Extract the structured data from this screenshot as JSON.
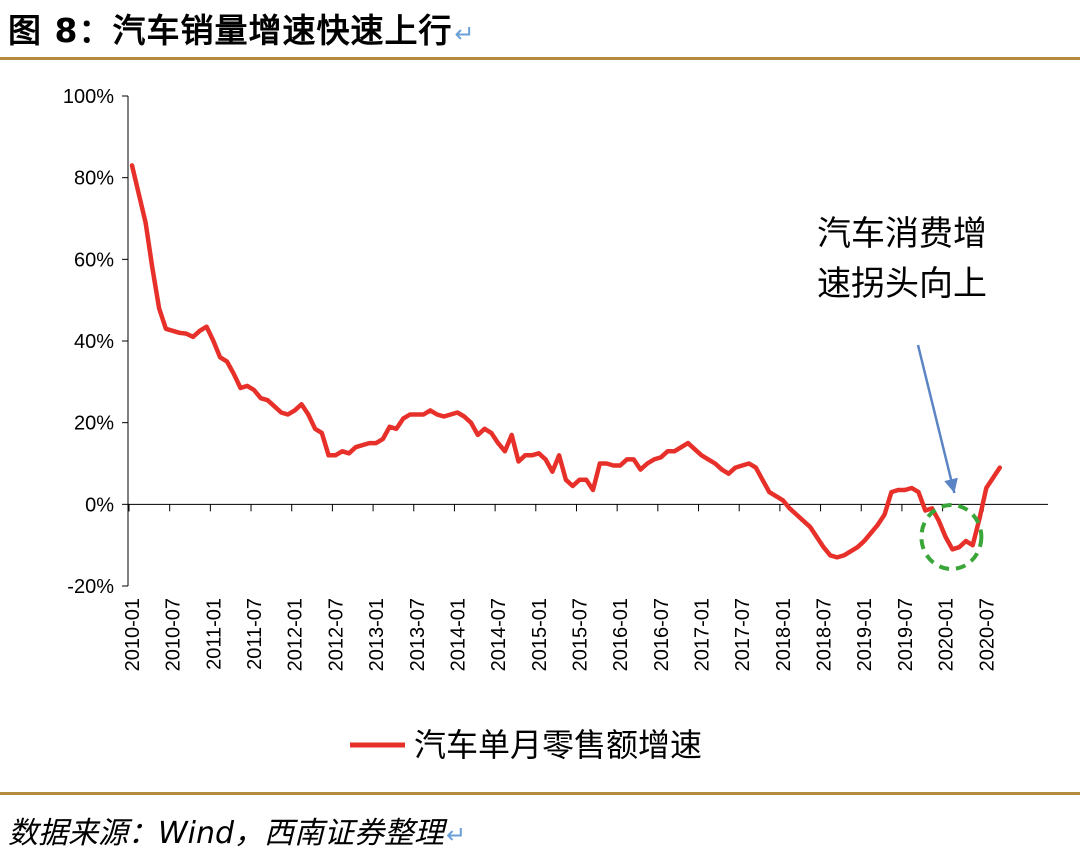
{
  "header": {
    "title": "图 8：汽车销量增速快速上行",
    "return_mark": "↵"
  },
  "footer": {
    "source": "数据来源：Wind，西南证券整理",
    "return_mark": "↵"
  },
  "colors": {
    "rule": "#b48a3c",
    "series": "#e8302a",
    "arrow": "#5b84c4",
    "circle": "#3aa63a"
  },
  "chart_data": {
    "type": "line",
    "title": "",
    "xlabel": "",
    "ylabel": "",
    "y_unit": "%",
    "ylim": [
      -20,
      100
    ],
    "yticks": [
      -20,
      0,
      20,
      40,
      60,
      80,
      100
    ],
    "ytick_labels": [
      "-20%",
      "0%",
      "20%",
      "40%",
      "60%",
      "80%",
      "100%"
    ],
    "xtick_labels": [
      "2010-01",
      "2010-07",
      "2011-01",
      "2011-07",
      "2012-01",
      "2012-07",
      "2013-01",
      "2013-07",
      "2014-01",
      "2014-07",
      "2015-01",
      "2015-07",
      "2016-01",
      "2016-07",
      "2017-01",
      "2017-07",
      "2018-01",
      "2018-07",
      "2019-01",
      "2019-07",
      "2020-01",
      "2020-07"
    ],
    "x_start": "2010-01",
    "grid": false,
    "legend_position": "bottom",
    "series": [
      {
        "name": "汽车单月零售额增速",
        "color": "#e8302a",
        "values": [
          83,
          76,
          69,
          58,
          48,
          43,
          42.5,
          42,
          41.8,
          41,
          42.5,
          43.5,
          40,
          36,
          35,
          32,
          28.5,
          29,
          28,
          26,
          25.5,
          24,
          22.5,
          22,
          23,
          24.5,
          22,
          18.5,
          17.5,
          12,
          12,
          13,
          12.5,
          14,
          14.5,
          15,
          15,
          16,
          19,
          18.5,
          21,
          22,
          22,
          22,
          23,
          22,
          21.5,
          22,
          22.5,
          21.5,
          20,
          17,
          18.5,
          17.5,
          15,
          13,
          17,
          10.5,
          12,
          12,
          12.5,
          11,
          8,
          12,
          6,
          4.5,
          6,
          6,
          3.5,
          10,
          10,
          9.5,
          9.5,
          11,
          11,
          8.5,
          10,
          11,
          11.5,
          13,
          13,
          14,
          15,
          13.5,
          12,
          11,
          10,
          8.5,
          7.5,
          9,
          9.5,
          10,
          9,
          6,
          3,
          2,
          1,
          -1,
          -2.5,
          -4,
          -5.5,
          -8,
          -10.5,
          -12.5,
          -13,
          -12.5,
          -11.5,
          -10.5,
          -9,
          -7,
          -5,
          -2.5,
          3,
          3.5,
          3.5,
          4,
          3,
          -1.5,
          -1,
          -4,
          -8,
          -11,
          -10.5,
          -9,
          -10,
          -3.5,
          4,
          6.5,
          9
        ]
      }
    ],
    "annotations": [
      {
        "text_lines": [
          "汽车消费增",
          "速拐头向上"
        ],
        "points_to": "2020-04",
        "marker": "dashed-circle"
      }
    ]
  }
}
